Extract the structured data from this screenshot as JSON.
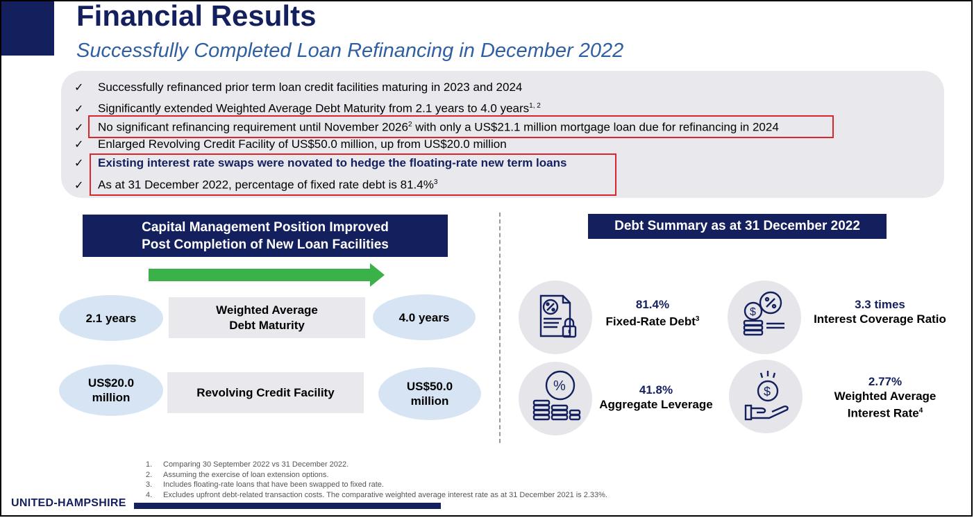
{
  "header": {
    "title": "Financial Results",
    "subtitle": "Successfully Completed Loan Refinancing in December 2022"
  },
  "bullets": [
    {
      "text": "Successfully refinanced prior term loan credit facilities maturing in 2023 and 2024",
      "sup": ""
    },
    {
      "text": "Significantly extended Weighted Average Debt Maturity from 2.1 years to 4.0 years",
      "sup": "1, 2"
    },
    {
      "pre": "No significant refinancing requirement until November 2026",
      "sup": "2",
      "post": " with only a US$21.1 million mortgage loan due for refinancing in 2024"
    },
    {
      "text": "Enlarged Revolving Credit Facility of US$50.0 million, up from US$20.0 million",
      "sup": ""
    },
    {
      "text": "Existing interest rate swaps were novated to hedge the floating-rate new term loans",
      "sup": ""
    },
    {
      "text": "As at 31 December 2022, percentage of fixed rate debt is 81.4%",
      "sup": "3"
    }
  ],
  "check_glyph": "✓",
  "capital": {
    "heading_line1": "Capital Management Position Improved",
    "heading_line2": "Post Completion of New Loan Facilities",
    "rows": [
      {
        "before": "2.1 years",
        "label_line1": "Weighted Average",
        "label_line2": "Debt Maturity",
        "after": "4.0 years"
      },
      {
        "before_line1": "US$20.0",
        "before_line2": "million",
        "label": "Revolving Credit Facility",
        "after_line1": "US$50.0",
        "after_line2": "million"
      }
    ]
  },
  "debt_summary": {
    "heading": "Debt Summary as at 31 December 2022",
    "metrics": [
      {
        "value": "81.4%",
        "label": "Fixed-Rate Debt",
        "sup": "3",
        "icon": "document-percent-lock-icon"
      },
      {
        "value": "3.3 times",
        "label": "Interest Coverage Ratio",
        "sup": "",
        "icon": "coins-percent-icon"
      },
      {
        "value": "41.8%",
        "label": "Aggregate Leverage",
        "sup": "",
        "icon": "coin-stack-percent-icon"
      },
      {
        "value": "2.77%",
        "label_line1": "Weighted Average",
        "label_line2": "Interest Rate",
        "sup": "4",
        "icon": "hand-dollar-icon"
      }
    ]
  },
  "footnotes": [
    {
      "num": "1.",
      "text": "Comparing 30 September 2022 vs 31 December 2022."
    },
    {
      "num": "2.",
      "text": "Assuming the exercise of loan extension options."
    },
    {
      "num": "3.",
      "text": "Includes floating-rate loans that have been swapped to fixed rate."
    },
    {
      "num": "4.",
      "text": "Excludes upfront debt-related transaction costs. The comparative weighted average interest rate as at 31 December 2021 is 2.33%."
    }
  ],
  "logo": {
    "text": "UNITED-HAMPSHIRE"
  },
  "colors": {
    "navy": "#14205e",
    "accent_blue": "#2f5fa0",
    "green_arrow": "#3bb14a",
    "highlight_red": "#d8262e"
  }
}
